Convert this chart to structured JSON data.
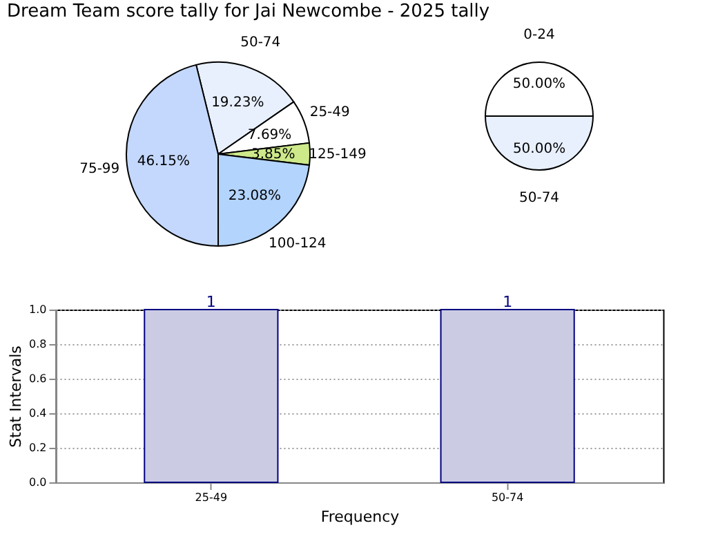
{
  "chart_data": [
    {
      "type": "pie",
      "title": "Dream Team score tally for Jai Newcombe - 2025 tally",
      "categories": [
        "50-74",
        "25-49",
        "125-149",
        "100-124",
        "75-99"
      ],
      "values": [
        19.23,
        7.69,
        3.85,
        23.08,
        46.15
      ],
      "value_labels": [
        "19.23%",
        "7.69%",
        "3.85%",
        "23.08%",
        "46.15%"
      ],
      "colors": [
        "#e8f0fe",
        "#ffffff",
        "#cde98a",
        "#b3d4fd",
        "#c4d8fd"
      ]
    },
    {
      "type": "pie",
      "categories": [
        "0-24",
        "50-74"
      ],
      "values": [
        50,
        50
      ],
      "value_labels": [
        "50.00%",
        "50.00%"
      ],
      "colors": [
        "#ffffff",
        "#e8f0fe"
      ]
    },
    {
      "type": "bar",
      "categories": [
        "25-49",
        "50-74"
      ],
      "values": [
        1,
        1
      ],
      "color": "#cbcbe4",
      "data_labels": true,
      "ylim": [
        0,
        1
      ],
      "yticks": [
        {
          "value": 0,
          "label": "0.0"
        },
        0.2,
        0.4,
        0.6,
        0.8,
        {
          "value": 1,
          "label": "1.0"
        }
      ],
      "xlabel": "Frequency",
      "ylabel": "Stat Intervals",
      "grid": true
    }
  ]
}
